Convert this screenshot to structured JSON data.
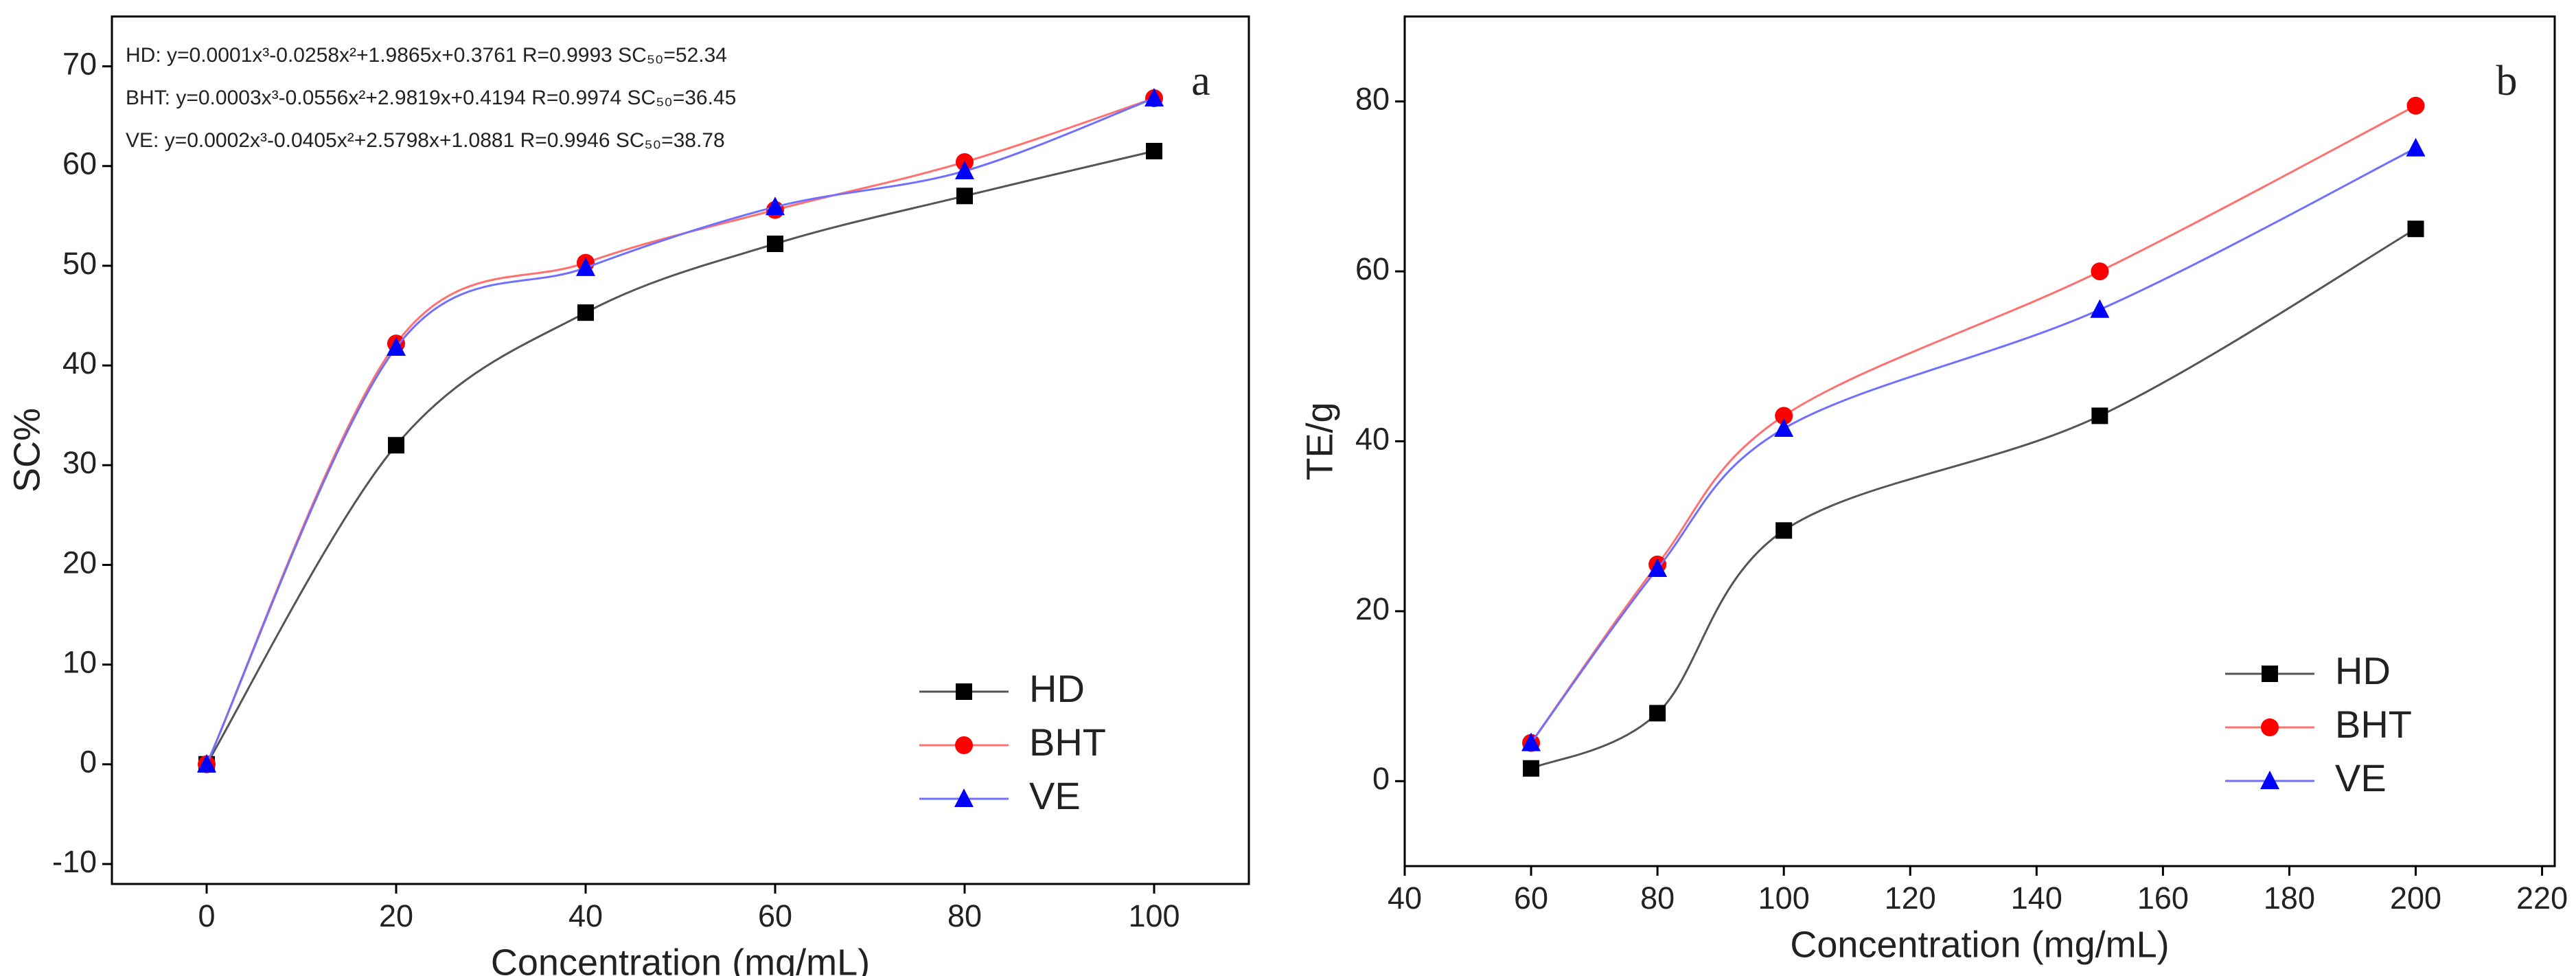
{
  "chart_data": [
    {
      "type": "line",
      "label": "a",
      "x_label": "Concentration (mg/mL)",
      "y_label": "SC%",
      "annotations": [
        "HD: y=0.0001x³-0.0258x²+1.9865x+0.3761 R=0.9993 SC₅₀=52.34",
        "BHT: y=0.0003x³-0.0556x²+2.9819x+0.4194 R=0.9974 SC₅₀=36.45",
        "VE: y=0.0002x³-0.0405x²+2.5798x+1.0881 R=0.9946 SC₅₀=38.78"
      ],
      "x": [
        0,
        20,
        40,
        60,
        80,
        100
      ],
      "series": [
        {
          "name": "HD",
          "color": "#000000",
          "marker": "square",
          "values": [
            0,
            32,
            45.3,
            52.2,
            57,
            61.5
          ]
        },
        {
          "name": "BHT",
          "color": "#ff0000",
          "marker": "circle",
          "values": [
            0,
            42.2,
            50.3,
            55.6,
            60.4,
            66.8
          ]
        },
        {
          "name": "VE",
          "color": "#0000ff",
          "marker": "triangle",
          "values": [
            0,
            41.8,
            49.8,
            55.9,
            59.5,
            66.8
          ]
        }
      ],
      "xlim": [
        -10,
        110
      ],
      "ylim": [
        -12,
        75
      ],
      "xticks": [
        0,
        20,
        40,
        60,
        80,
        100
      ],
      "yticks": [
        -10,
        0,
        10,
        20,
        30,
        40,
        50,
        60,
        70
      ],
      "legend": "lower right"
    },
    {
      "type": "line",
      "label": "b",
      "x_label": "Concentration (mg/mL)",
      "y_label": "TE/g",
      "x": [
        60,
        80,
        100,
        150,
        200
      ],
      "series": [
        {
          "name": "HD",
          "color": "#000000",
          "marker": "square",
          "values": [
            1.5,
            8,
            29.5,
            43,
            65
          ]
        },
        {
          "name": "BHT",
          "color": "#ff0000",
          "marker": "circle",
          "values": [
            4.5,
            25.5,
            43,
            60,
            79.5
          ]
        },
        {
          "name": "VE",
          "color": "#0000ff",
          "marker": "triangle",
          "values": [
            4.5,
            25,
            41.5,
            55.5,
            74.5
          ]
        }
      ],
      "xlim": [
        40,
        222
      ],
      "ylim": [
        -10,
        90
      ],
      "xticks": [
        40,
        60,
        80,
        100,
        120,
        140,
        160,
        180,
        200,
        220
      ],
      "yticks": [
        0,
        20,
        40,
        60,
        80
      ],
      "legend": "lower right"
    }
  ]
}
